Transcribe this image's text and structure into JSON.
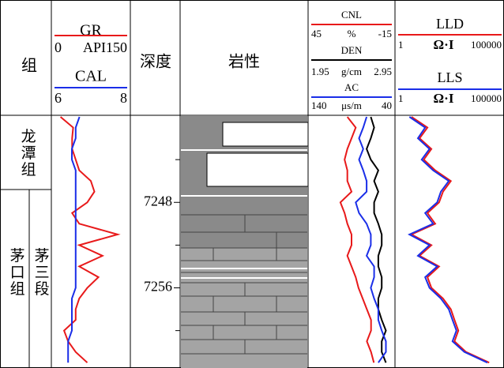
{
  "chart_data": {
    "type": "well-log",
    "columns": {
      "zone": "组",
      "depth": "深度",
      "lithology": "岩性"
    },
    "zones": [
      {
        "label": "龙潭组",
        "top": 7240,
        "bottom": 7246.8
      },
      {
        "label": "茅口组",
        "sub": "茅三段",
        "top": 7246.8,
        "bottom": 7263.5
      }
    ],
    "ylim": [
      7240,
      7263.5
    ],
    "yticks": [
      7248,
      7256
    ],
    "minor_yticks": [
      7244,
      7252,
      7260
    ],
    "depth": [
      7240,
      7241,
      7242,
      7243,
      7244,
      7245,
      7246,
      7247,
      7248,
      7249,
      7250,
      7251,
      7252,
      7253,
      7254,
      7255,
      7256,
      7257,
      7258,
      7259,
      7260,
      7261,
      7262,
      7263
    ],
    "series": [
      {
        "name": "GR",
        "color": "#e8191a",
        "track": 0,
        "xlim": [
          0,
          150
        ],
        "left_label": "0",
        "right_label": "API150",
        "values": [
          15,
          40,
          38,
          38,
          45,
          52,
          75,
          82,
          68,
          38,
          52,
          128,
          52,
          98,
          52,
          90,
          68,
          52,
          45,
          45,
          22,
          30,
          45,
          68
        ]
      },
      {
        "name": "CAL",
        "color": "#1a2ee8",
        "track": 0,
        "xlim": [
          6,
          8
        ],
        "left_label": "6",
        "right_label": "8",
        "values": [
          6.7,
          6.6,
          6.6,
          6.5,
          6.5,
          6.6,
          6.6,
          6.6,
          6.6,
          6.6,
          6.6,
          6.6,
          6.6,
          6.6,
          6.6,
          6.6,
          6.6,
          6.5,
          6.5,
          6.5,
          6.5,
          6.4,
          6.4,
          6.4
        ]
      },
      {
        "name": "CNL",
        "color": "#e8191a",
        "track": 1,
        "xlim": [
          45,
          -15
        ],
        "left_label": "45",
        "unit": "%",
        "right_label": "-15",
        "values": [
          18,
          12,
          15,
          18,
          20,
          18,
          18,
          15,
          23,
          20,
          18,
          15,
          15,
          18,
          15,
          12,
          10,
          7,
          4,
          1,
          1,
          4,
          1,
          -1
        ]
      },
      {
        "name": "DEN",
        "color": "#000000",
        "track": 1,
        "xlim": [
          1.95,
          2.95
        ],
        "left_label": "1.95",
        "unit": "g/cm",
        "right_label": "2.95",
        "values": [
          2.68,
          2.72,
          2.68,
          2.63,
          2.68,
          2.77,
          2.72,
          2.77,
          2.72,
          2.72,
          2.77,
          2.81,
          2.81,
          2.77,
          2.77,
          2.81,
          2.81,
          2.77,
          2.77,
          2.81,
          2.86,
          2.81,
          2.81,
          2.86
        ]
      },
      {
        "name": "AC",
        "color": "#1a2ee8",
        "track": 1,
        "xlim": [
          140,
          40
        ],
        "left_label": "140",
        "unit": "μs/m",
        "right_label": "40",
        "values": [
          72,
          76,
          81,
          76,
          81,
          76,
          72,
          72,
          85,
          81,
          72,
          67,
          67,
          72,
          63,
          63,
          67,
          63,
          58,
          58,
          54,
          49,
          49,
          58
        ]
      },
      {
        "name": "LLD",
        "color": "#e8191a",
        "track": 2,
        "xlim": [
          1,
          100000
        ],
        "log": true,
        "left_label": "1",
        "unit": "Ω·I",
        "right_label": "100000",
        "values": [
          5,
          28,
          12,
          43,
          19,
          65,
          350,
          150,
          98,
          28,
          65,
          5,
          43,
          12,
          98,
          28,
          43,
          150,
          350,
          520,
          790,
          520,
          1800,
          22000
        ]
      },
      {
        "name": "LLS",
        "color": "#1a2ee8",
        "track": 2,
        "xlim": [
          1,
          100000
        ],
        "log": true,
        "left_label": "1",
        "unit": "Ω·I",
        "right_label": "100000",
        "values": [
          4,
          22,
          10,
          35,
          15,
          52,
          280,
          120,
          80,
          22,
          52,
          4,
          35,
          10,
          80,
          22,
          35,
          120,
          280,
          420,
          640,
          420,
          1500,
          18000
        ]
      }
    ]
  }
}
